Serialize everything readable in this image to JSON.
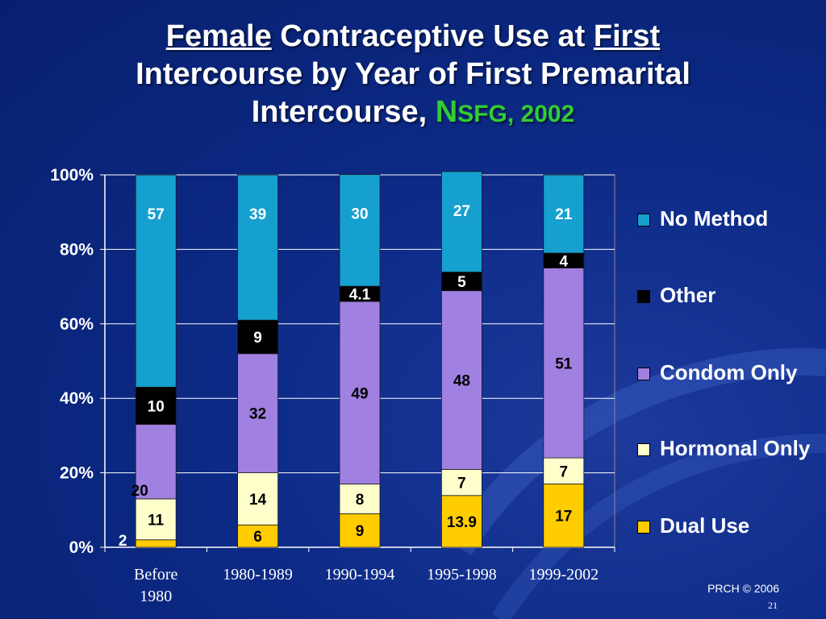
{
  "title": {
    "part1": "Female",
    "part2": " Contraceptive Use at ",
    "part3": "First",
    "line2": "Intercourse by Year of First Premarital",
    "line3": "Intercourse, ",
    "source_n": "N",
    "source_rest": "SFG, 2002"
  },
  "colors": {
    "dual": "#ffcc00",
    "hormonal": "#ffffcc",
    "condom": "#a080e0",
    "other": "#000000",
    "none": "#16a0d0",
    "text": "#ffffff"
  },
  "chart_data": {
    "type": "bar",
    "stacked": true,
    "categories": [
      "Before 1980",
      "1980-1989",
      "1990-1994",
      "1995-1998",
      "1999-2002"
    ],
    "y_tick_labels": [
      "0%",
      "20%",
      "40%",
      "60%",
      "80%",
      "100%"
    ],
    "ylim": [
      0,
      100
    ],
    "grid": true,
    "legend_position": "right",
    "series": [
      {
        "name": "Dual Use",
        "key": "dual",
        "values": [
          2,
          6,
          9,
          13.9,
          17
        ],
        "labels": [
          "2",
          "6",
          "9",
          "13.9",
          "17"
        ]
      },
      {
        "name": "Hormonal Only",
        "key": "hormonal",
        "values": [
          11,
          14,
          8,
          7,
          7
        ],
        "labels": [
          "11",
          "14",
          "8",
          "7",
          "7"
        ]
      },
      {
        "name": "Condom Only",
        "key": "condom",
        "values": [
          20,
          32,
          49,
          48,
          51
        ],
        "labels": [
          "20",
          "32",
          "49",
          "48",
          "51"
        ]
      },
      {
        "name": "Other",
        "key": "other",
        "values": [
          10,
          9,
          4.1,
          5,
          4
        ],
        "labels": [
          "10",
          "9",
          "4.1",
          "5",
          "4"
        ]
      },
      {
        "name": "No Method",
        "key": "none",
        "values": [
          57,
          39,
          30,
          27,
          21
        ],
        "labels": [
          "57",
          "39",
          "30",
          "27",
          "21"
        ]
      }
    ]
  },
  "legend": {
    "none": "No Method",
    "other": "Other",
    "condom": "Condom Only",
    "hormonal": "Hormonal Only",
    "dual": "Dual Use"
  },
  "footer": {
    "copyright": "PRCH © 2006",
    "page": "21"
  }
}
